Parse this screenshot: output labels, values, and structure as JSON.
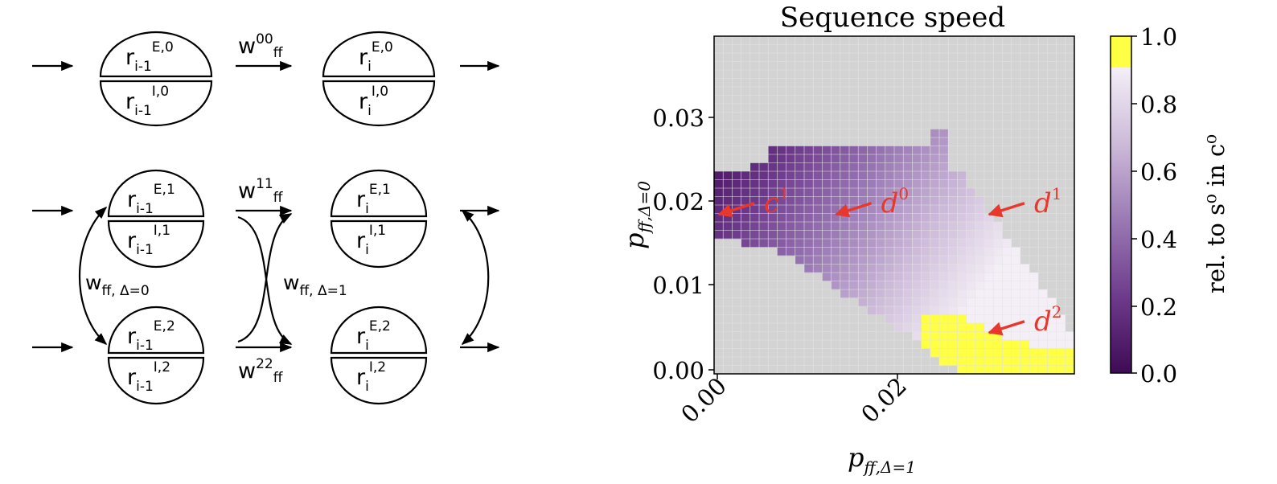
{
  "diagram": {
    "pop_top": {
      "left": {
        "e_base": "r",
        "e_sub": "i-1",
        "e_sup": "E,0",
        "i_base": "r",
        "i_sub": "i-1",
        "i_sup": "I,0"
      },
      "right": {
        "e_base": "r",
        "e_sub": "i",
        "e_sup": "E,0",
        "i_base": "r",
        "i_sub": "i",
        "i_sup": "I,0"
      },
      "w_base": "w",
      "w_sup": "00",
      "w_sub": "ff"
    },
    "pop_mid": {
      "left": {
        "e_base": "r",
        "e_sub": "i-1",
        "e_sup": "E,1",
        "i_base": "r",
        "i_sub": "i-1",
        "i_sup": "I,1"
      },
      "right": {
        "e_base": "r",
        "e_sub": "i",
        "e_sup": "E,1",
        "i_base": "r",
        "i_sub": "i",
        "i_sup": "I,1"
      },
      "w_base": "w",
      "w_sup": "11",
      "w_sub": "ff"
    },
    "pop_bot": {
      "left": {
        "e_base": "r",
        "e_sub": "i-1",
        "e_sup": "E,2",
        "i_base": "r",
        "i_sub": "i-1",
        "i_sup": "I,2"
      },
      "right": {
        "e_base": "r",
        "e_sub": "i",
        "e_sup": "E,2",
        "i_base": "r",
        "i_sub": "i",
        "i_sup": "I,2"
      },
      "w_base": "w",
      "w_sup": "22",
      "w_sub": "ff"
    },
    "w_delta0": {
      "base": "w",
      "sub": "ff, Δ=0"
    },
    "w_delta1": {
      "base": "w",
      "sub": "ff, Δ=1"
    }
  },
  "chart_data": {
    "type": "heatmap",
    "title": "Sequence speed",
    "xlabel": {
      "base": "p",
      "sub": "ff,Δ=1"
    },
    "ylabel": {
      "base": "p",
      "sub": "ff,Δ=0"
    },
    "xticks": [
      "0.00",
      "0.02"
    ],
    "yticks": [
      "0.00",
      "0.01",
      "0.02",
      "0.03"
    ],
    "xlim": [
      0.0,
      0.04
    ],
    "ylim": [
      0.0,
      0.04
    ],
    "colorbar": {
      "label": "rel. to s⁰ in c⁰",
      "ticks": [
        "0.0",
        "0.2",
        "0.4",
        "0.6",
        "0.8",
        "1.0"
      ],
      "range": [
        0.0,
        1.0
      ],
      "colors": {
        "low": "#3f0a55",
        "mid": "#9a79b4",
        "high": "#f4eff7",
        "over": "#ffff44",
        "background": "#d3d3d3"
      }
    },
    "annotations": [
      {
        "base": "c",
        "sup": "1",
        "x": 0.0,
        "y": 0.0185
      },
      {
        "base": "d",
        "sup": "0",
        "x": 0.013,
        "y": 0.0185
      },
      {
        "base": "d",
        "sup": "1",
        "x": 0.03,
        "y": 0.0185
      },
      {
        "base": "d",
        "sup": "2",
        "x": 0.03,
        "y": 0.0045
      }
    ],
    "annotation_color": "#e8372c"
  }
}
